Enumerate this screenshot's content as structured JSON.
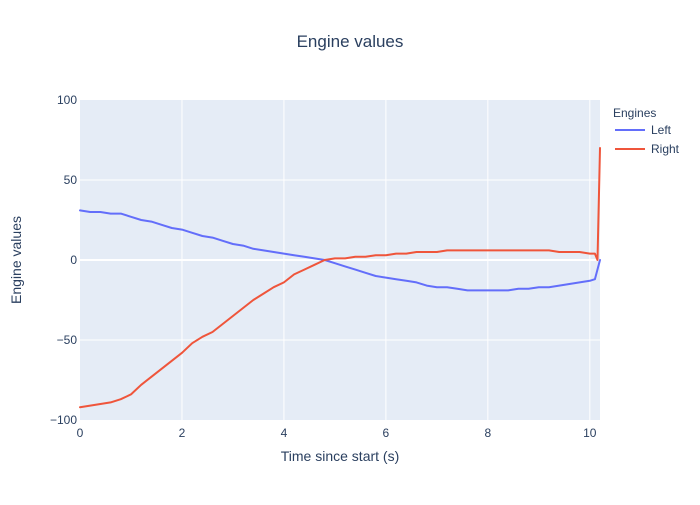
{
  "chart_data": {
    "type": "line",
    "title": "Engine values",
    "xlabel": "Time since start (s)",
    "ylabel": "Engine values",
    "xlim": [
      0,
      10.2
    ],
    "ylim": [
      -100,
      100
    ],
    "x_ticks": [
      0,
      2,
      4,
      6,
      8,
      10
    ],
    "y_ticks": [
      -100,
      -50,
      0,
      50,
      100
    ],
    "y_tick_labels": [
      "−100",
      "−50",
      "0",
      "50",
      "100"
    ],
    "grid": true,
    "legend_title": "Engines",
    "legend_position": "top-right",
    "series": [
      {
        "name": "Left",
        "color": "#636efa",
        "x": [
          0,
          0.2,
          0.4,
          0.6,
          0.8,
          1.0,
          1.2,
          1.4,
          1.6,
          1.8,
          2.0,
          2.2,
          2.4,
          2.6,
          2.8,
          3.0,
          3.2,
          3.4,
          3.6,
          3.8,
          4.0,
          4.2,
          4.4,
          4.6,
          4.8,
          5.0,
          5.2,
          5.4,
          5.6,
          5.8,
          6.0,
          6.2,
          6.4,
          6.6,
          6.8,
          7.0,
          7.2,
          7.4,
          7.6,
          7.8,
          8.0,
          8.2,
          8.4,
          8.6,
          8.8,
          9.0,
          9.2,
          9.4,
          9.6,
          9.8,
          10.0,
          10.1,
          10.2
        ],
        "values": [
          31,
          30,
          30,
          29,
          29,
          27,
          25,
          24,
          22,
          20,
          19,
          17,
          15,
          14,
          12,
          10,
          9,
          7,
          6,
          5,
          4,
          3,
          2,
          1,
          0,
          -2,
          -4,
          -6,
          -8,
          -10,
          -11,
          -12,
          -13,
          -14,
          -16,
          -17,
          -17,
          -18,
          -19,
          -19,
          -19,
          -19,
          -19,
          -18,
          -18,
          -17,
          -17,
          -16,
          -15,
          -14,
          -13,
          -12,
          0
        ]
      },
      {
        "name": "Right",
        "color": "#ef553b",
        "x": [
          0,
          0.2,
          0.4,
          0.6,
          0.8,
          1.0,
          1.2,
          1.4,
          1.6,
          1.8,
          2.0,
          2.2,
          2.4,
          2.6,
          2.8,
          3.0,
          3.2,
          3.4,
          3.6,
          3.8,
          4.0,
          4.2,
          4.4,
          4.6,
          4.8,
          5.0,
          5.2,
          5.4,
          5.6,
          5.8,
          6.0,
          6.2,
          6.4,
          6.6,
          6.8,
          7.0,
          7.2,
          7.4,
          7.6,
          7.8,
          8.0,
          8.2,
          8.4,
          8.6,
          8.8,
          9.0,
          9.2,
          9.4,
          9.6,
          9.8,
          10.0,
          10.1,
          10.15,
          10.2
        ],
        "values": [
          -92,
          -91,
          -90,
          -89,
          -87,
          -84,
          -78,
          -73,
          -68,
          -63,
          -58,
          -52,
          -48,
          -45,
          -40,
          -35,
          -30,
          -25,
          -21,
          -17,
          -14,
          -9,
          -6,
          -3,
          0,
          1,
          1,
          2,
          2,
          3,
          3,
          4,
          4,
          5,
          5,
          5,
          6,
          6,
          6,
          6,
          6,
          6,
          6,
          6,
          6,
          6,
          6,
          5,
          5,
          5,
          4,
          4,
          0,
          70
        ]
      }
    ]
  }
}
